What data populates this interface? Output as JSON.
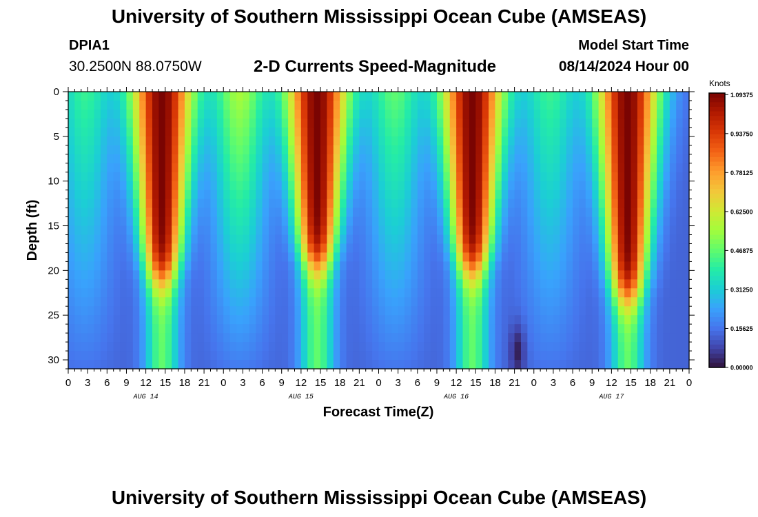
{
  "page": {
    "title": "University of Southern Mississippi Ocean Cube (AMSEAS)",
    "bottom_title": "University of Southern Mississippi Ocean Cube (AMSEAS)"
  },
  "station": {
    "id": "DPIA1",
    "coords": "30.2500N  88.0750W"
  },
  "model": {
    "start_label": "Model Start Time",
    "start_value": "08/14/2024 Hour 00"
  },
  "chart_data": {
    "type": "heatmap",
    "title": "2-D Currents Speed-Magnitude",
    "xlabel": "Forecast Time(Z)",
    "ylabel": "Depth (ft)",
    "x_range_hours": [
      0,
      96
    ],
    "ylim": [
      0,
      31
    ],
    "y_ticks": [
      "0",
      "5",
      "10",
      "15",
      "20",
      "25",
      "30"
    ],
    "x_tick_labels": [
      "0",
      "3",
      "6",
      "9",
      "12",
      "15",
      "18",
      "21",
      "0",
      "3",
      "6",
      "9",
      "12",
      "15",
      "18",
      "21",
      "0",
      "3",
      "6",
      "9",
      "12",
      "15",
      "18",
      "21",
      "0",
      "3",
      "6",
      "9",
      "12",
      "15",
      "18",
      "21",
      "0"
    ],
    "day_labels": [
      {
        "text": "AUG 14",
        "hour": 12
      },
      {
        "text": "AUG 15",
        "hour": 36
      },
      {
        "text": "AUG 16",
        "hour": 60
      },
      {
        "text": "AUG 17",
        "hour": 84
      }
    ],
    "colorbar": {
      "unit": "Knots",
      "min": 0,
      "max": 1.1,
      "labels": [
        "1.09375",
        "0.93750",
        "0.78125",
        "0.62500",
        "0.46875",
        "0.31250",
        "0.15625",
        "0.00000"
      ],
      "label_values": [
        1.09375,
        0.9375,
        0.78125,
        0.625,
        0.46875,
        0.3125,
        0.15625,
        0.0
      ],
      "colors": [
        "#30123b",
        "#4145ab",
        "#4675ed",
        "#39a2fc",
        "#1bcfd4",
        "#24eca6",
        "#61fc6c",
        "#a4fc3b",
        "#d1e834",
        "#f3c63a",
        "#fe9b2d",
        "#f36315",
        "#d93806",
        "#b11901",
        "#7a0402"
      ]
    },
    "peaks": [
      {
        "hour": 14.5,
        "speed": 1.1,
        "bottom_depth_ft": 21
      },
      {
        "hour": 38.5,
        "speed": 1.1,
        "bottom_depth_ft": 19.5
      },
      {
        "hour": 62.5,
        "speed": 1.1,
        "bottom_depth_ft": 20
      },
      {
        "hour": 86.5,
        "speed": 1.1,
        "bottom_depth_ft": 23
      }
    ],
    "secondary_peaks": [
      {
        "hour": 2.5,
        "speed": 0.45
      },
      {
        "hour": 26.5,
        "speed": 0.6
      },
      {
        "hour": 50.5,
        "speed": 0.5
      },
      {
        "hour": 74.5,
        "speed": 0.45
      }
    ],
    "deep_flow_speed": 0.13,
    "min_speed_hour": 69.5
  }
}
